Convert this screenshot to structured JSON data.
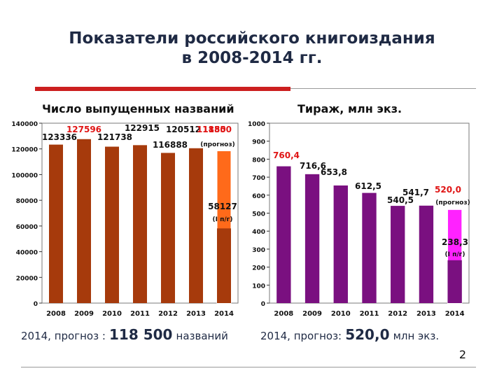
{
  "slide": {
    "title_line1": "Показатели российского книгоиздания",
    "title_line2": "в 2008-2014 гг.",
    "page_number": "2"
  },
  "colors": {
    "title": "#1f2a44",
    "accent_rule": "#cc1f1f",
    "titles_bar": "#a63a0c",
    "titles_forecast": "#ff6a1a",
    "circulation_bar": "#7a1080",
    "circulation_forecast": "#ff22ff",
    "label_red": "#e01515"
  },
  "footnotes": {
    "left_prefix": "2014, прогноз :",
    "left_value": "118 500",
    "left_suffix": "названий",
    "right_prefix": "2014, прогноз:",
    "right_value": "520,0",
    "right_suffix": "млн экз."
  },
  "chart_data": [
    {
      "type": "bar",
      "title": "Число выпущенных названий",
      "categories": [
        "2008",
        "2009",
        "2010",
        "2011",
        "2012",
        "2013",
        "2014"
      ],
      "values": [
        123336,
        127596,
        121738,
        122915,
        116888,
        120512,
        118500
      ],
      "value_labels": [
        "123336",
        "127596",
        "121738",
        "122915",
        "116888",
        "120512",
        "118500"
      ],
      "ylim": [
        0,
        140000
      ],
      "yticks": [
        "0",
        "20000",
        "40000",
        "60000",
        "80000",
        "100000",
        "120000",
        "140000"
      ],
      "forecast_note": "(прогноз)",
      "forecast_half_value": 58127,
      "forecast_half_label": "58127",
      "forecast_half_note": "(I п/г)",
      "stray_label": "1185",
      "grid": false
    },
    {
      "type": "bar",
      "title": "Тираж, млн экз.",
      "categories": [
        "2008",
        "2009",
        "2010",
        "2011",
        "2012",
        "2013",
        "2014"
      ],
      "values": [
        760.4,
        716.6,
        653.8,
        612.5,
        540.5,
        541.7,
        520.0
      ],
      "value_labels": [
        "760,4",
        "716,6",
        "653,8",
        "612,5",
        "540,5",
        "541,7",
        "520,0"
      ],
      "ylim": [
        0,
        1000
      ],
      "yticks": [
        "0",
        "100",
        "200",
        "300",
        "400",
        "500",
        "600",
        "700",
        "800",
        "900",
        "1000"
      ],
      "forecast_note": "(прогноз)",
      "forecast_half_value": 238.3,
      "forecast_half_label": "238,3",
      "forecast_half_note": "(I п/г)",
      "grid": false
    }
  ]
}
